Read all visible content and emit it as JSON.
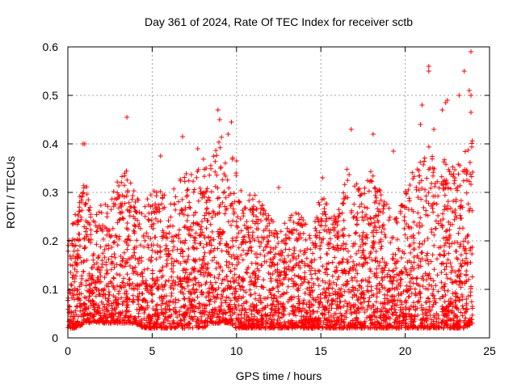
{
  "chart_data": {
    "type": "scatter",
    "title": "Day 361 of 2024, Rate Of TEC Index for receiver sctb",
    "xlabel": "GPS time / hours",
    "ylabel": "ROTI / TECUs",
    "xlim": [
      0,
      25
    ],
    "ylim": [
      0,
      0.6
    ],
    "xticks": [
      "0",
      "5",
      "10",
      "15",
      "20",
      "25"
    ],
    "yticks": [
      "0",
      "0.1",
      "0.2",
      "0.3",
      "0.4",
      "0.5",
      "0.6"
    ],
    "grid": true,
    "marker": "plus",
    "color": "#ff0000",
    "x_range_of_data": [
      0,
      24
    ],
    "series": [
      {
        "envelope_x": [
          0,
          0.5,
          1,
          1.5,
          2,
          2.5,
          3,
          3.5,
          4,
          4.5,
          5,
          5.5,
          6,
          6.5,
          7,
          7.5,
          8,
          8.5,
          9,
          9.5,
          10,
          10.5,
          11,
          11.5,
          12,
          12.5,
          13,
          13.5,
          14,
          14.5,
          15,
          15.5,
          16,
          16.5,
          17,
          17.5,
          18,
          18.5,
          19,
          19.5,
          20,
          20.5,
          21,
          21.5,
          22,
          22.5,
          23,
          23.5,
          24
        ],
        "envelope_upper": [
          0.2,
          0.27,
          0.33,
          0.25,
          0.28,
          0.3,
          0.33,
          0.35,
          0.3,
          0.28,
          0.3,
          0.33,
          0.3,
          0.33,
          0.35,
          0.33,
          0.38,
          0.36,
          0.42,
          0.4,
          0.35,
          0.3,
          0.3,
          0.28,
          0.25,
          0.22,
          0.25,
          0.26,
          0.25,
          0.22,
          0.3,
          0.27,
          0.28,
          0.35,
          0.33,
          0.3,
          0.35,
          0.33,
          0.27,
          0.25,
          0.3,
          0.35,
          0.38,
          0.4,
          0.35,
          0.38,
          0.35,
          0.38,
          0.42
        ],
        "envelope_lower": [
          0.02,
          0.02,
          0.03,
          0.03,
          0.03,
          0.03,
          0.03,
          0.03,
          0.03,
          0.02,
          0.02,
          0.02,
          0.02,
          0.02,
          0.02,
          0.02,
          0.02,
          0.03,
          0.03,
          0.03,
          0.02,
          0.02,
          0.02,
          0.02,
          0.02,
          0.02,
          0.02,
          0.02,
          0.02,
          0.02,
          0.02,
          0.02,
          0.02,
          0.02,
          0.02,
          0.02,
          0.02,
          0.02,
          0.02,
          0.02,
          0.02,
          0.02,
          0.02,
          0.02,
          0.02,
          0.02,
          0.02,
          0.02,
          0.03
        ],
        "outliers": [
          [
            0.9,
            0.4
          ],
          [
            1.0,
            0.4
          ],
          [
            3.5,
            0.455
          ],
          [
            6.8,
            0.415
          ],
          [
            8.9,
            0.47
          ],
          [
            9.0,
            0.45
          ],
          [
            9.7,
            0.445
          ],
          [
            9.5,
            0.42
          ],
          [
            16.8,
            0.43
          ],
          [
            18.1,
            0.42
          ],
          [
            21.0,
            0.48
          ],
          [
            21.4,
            0.56
          ],
          [
            21.4,
            0.55
          ],
          [
            22.4,
            0.485
          ],
          [
            22.5,
            0.49
          ],
          [
            23.2,
            0.5
          ],
          [
            23.5,
            0.55
          ],
          [
            23.9,
            0.59
          ],
          [
            23.8,
            0.51
          ],
          [
            23.9,
            0.5
          ],
          [
            22.2,
            0.47
          ],
          [
            23.9,
            0.465
          ],
          [
            20.9,
            0.44
          ],
          [
            21.7,
            0.43
          ],
          [
            5.5,
            0.375
          ],
          [
            7.7,
            0.39
          ],
          [
            10.0,
            0.365
          ],
          [
            12.5,
            0.31
          ],
          [
            15.1,
            0.33
          ],
          [
            19.3,
            0.385
          ]
        ]
      }
    ]
  }
}
